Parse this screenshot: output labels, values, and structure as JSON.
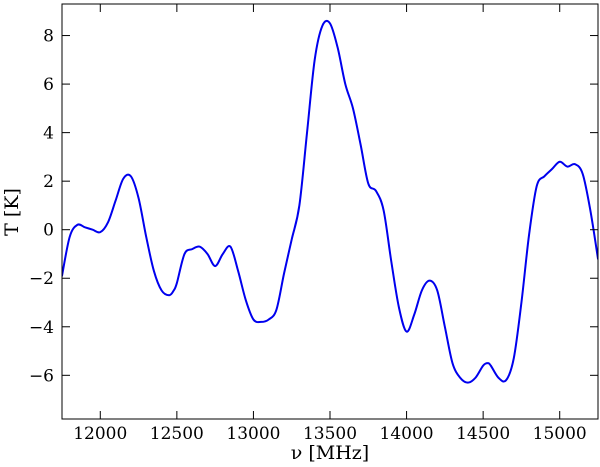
{
  "chart_data": {
    "type": "line",
    "title": "",
    "xlabel": "ν [MHz]",
    "ylabel": "T [K]",
    "xlim": [
      11750,
      15250
    ],
    "ylim": [
      -7.8,
      9.3
    ],
    "xticks": [
      12000,
      12500,
      13000,
      13500,
      14000,
      14500,
      15000
    ],
    "yticks": [
      -6,
      -4,
      -2,
      0,
      2,
      4,
      6,
      8
    ],
    "grid": false,
    "legend": "none",
    "line_color": "#0000ee",
    "series": [
      {
        "x": [
          11750,
          11800,
          11850,
          11900,
          11950,
          12000,
          12050,
          12100,
          12150,
          12200,
          12250,
          12300,
          12350,
          12400,
          12450,
          12480,
          12500,
          12550,
          12600,
          12650,
          12700,
          12750,
          12800,
          12850,
          12900,
          12950,
          13000,
          13050,
          13100,
          13150,
          13200,
          13250,
          13300,
          13350,
          13400,
          13450,
          13500,
          13550,
          13600,
          13650,
          13700,
          13750,
          13800,
          13850,
          13900,
          13950,
          14000,
          14050,
          14100,
          14150,
          14200,
          14250,
          14300,
          14350,
          14400,
          14450,
          14500,
          14530,
          14550,
          14600,
          14650,
          14700,
          14750,
          14800,
          14850,
          14900,
          14950,
          15000,
          15050,
          15100,
          15150,
          15200,
          15250
        ],
        "y": [
          -1.9,
          -0.3,
          0.2,
          0.1,
          0.0,
          -0.1,
          0.3,
          1.2,
          2.1,
          2.2,
          1.3,
          -0.3,
          -1.7,
          -2.5,
          -2.7,
          -2.5,
          -2.2,
          -1.0,
          -0.8,
          -0.7,
          -1.0,
          -1.5,
          -1.0,
          -0.7,
          -1.7,
          -2.9,
          -3.7,
          -3.8,
          -3.7,
          -3.3,
          -1.8,
          -0.4,
          1.0,
          4.0,
          7.0,
          8.4,
          8.5,
          7.5,
          6.0,
          5.0,
          3.5,
          1.9,
          1.6,
          0.8,
          -1.3,
          -3.2,
          -4.2,
          -3.5,
          -2.5,
          -2.1,
          -2.5,
          -4.0,
          -5.5,
          -6.1,
          -6.3,
          -6.1,
          -5.6,
          -5.5,
          -5.6,
          -6.1,
          -6.2,
          -5.3,
          -3.0,
          -0.2,
          1.8,
          2.2,
          2.5,
          2.8,
          2.6,
          2.7,
          2.3,
          0.8,
          -1.2
        ]
      }
    ]
  }
}
